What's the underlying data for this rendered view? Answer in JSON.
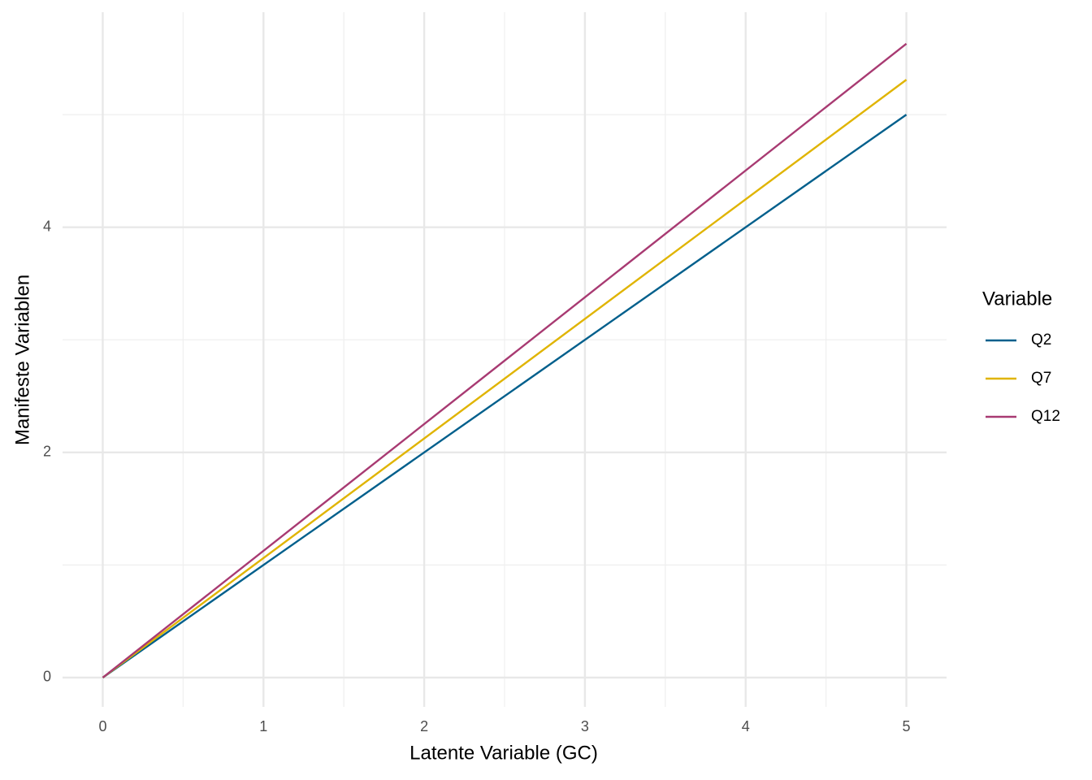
{
  "chart_data": {
    "type": "line",
    "x_label": "Latente Variable (GC)",
    "y_label": "Manifeste Variablen",
    "x": [
      0,
      5
    ],
    "series": [
      {
        "name": "Q2",
        "color": "#005f8c",
        "values": [
          0,
          5
        ]
      },
      {
        "name": "Q7",
        "color": "#e0b400",
        "values": [
          0,
          5.31
        ]
      },
      {
        "name": "Q12",
        "color": "#a83a72",
        "values": [
          0,
          5.63
        ]
      }
    ],
    "legend_title": "Variable",
    "legend": "right",
    "xlim": [
      -0.25,
      5.25
    ],
    "ylim": [
      -0.26,
      5.91
    ],
    "xticks": [
      0,
      1,
      2,
      3,
      4,
      5
    ],
    "yticks": [
      0,
      2,
      4
    ],
    "minor_xgrid": [
      0.5,
      1.5,
      2.5,
      3.5,
      4.5
    ],
    "minor_ygrid": [
      1,
      3,
      5
    ],
    "grid": true
  }
}
